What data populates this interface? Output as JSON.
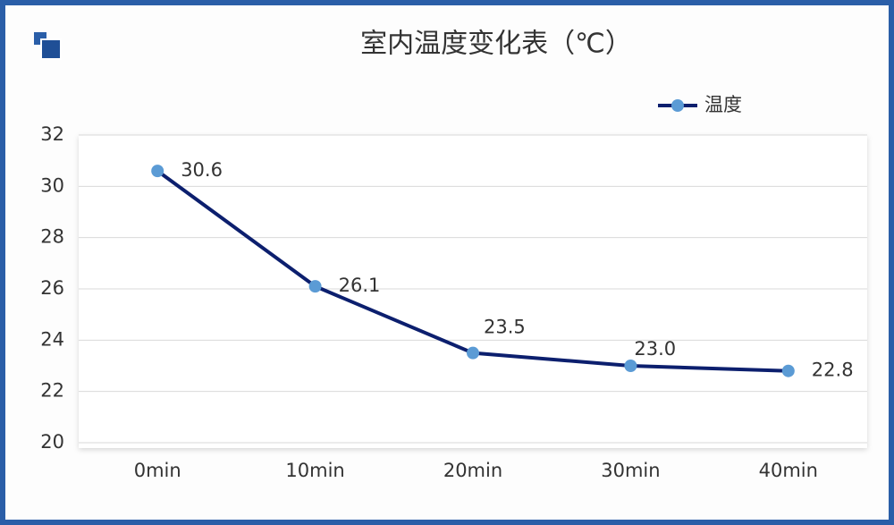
{
  "chart_data": {
    "type": "line",
    "title": "室内温度变化表（℃）",
    "categories": [
      "0min",
      "10min",
      "20min",
      "30min",
      "40min"
    ],
    "series": [
      {
        "name": "温度",
        "color": "#0c1f6e",
        "marker_color": "#5b9bd5",
        "values": [
          30.6,
          26.1,
          23.5,
          23.0,
          22.8
        ],
        "value_labels": [
          "30.6",
          "26.1",
          "23.5",
          "23.0",
          "22.8"
        ]
      }
    ],
    "ylim": [
      20,
      32
    ],
    "yticks": [
      20,
      22,
      24,
      26,
      28,
      30,
      32
    ],
    "grid": true,
    "legend": "top-right"
  }
}
